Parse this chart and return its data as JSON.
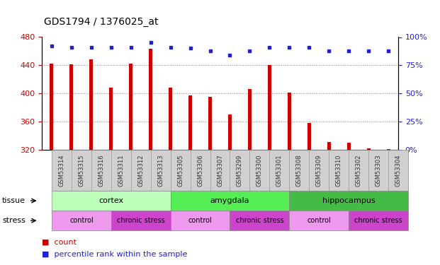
{
  "title": "GDS1794 / 1376025_at",
  "samples": [
    "GSM53314",
    "GSM53315",
    "GSM53316",
    "GSM53311",
    "GSM53312",
    "GSM53313",
    "GSM53305",
    "GSM53306",
    "GSM53307",
    "GSM53299",
    "GSM53300",
    "GSM53301",
    "GSM53308",
    "GSM53309",
    "GSM53310",
    "GSM53302",
    "GSM53303",
    "GSM53304"
  ],
  "counts": [
    442,
    441,
    448,
    408,
    442,
    463,
    408,
    397,
    395,
    370,
    406,
    440,
    401,
    358,
    331,
    330,
    322,
    321
  ],
  "percentiles": [
    92,
    91,
    91,
    91,
    91,
    95,
    91,
    90,
    88,
    84,
    88,
    91,
    91,
    91,
    88,
    88,
    88,
    88
  ],
  "ymin": 320,
  "ymax": 480,
  "yticks": [
    320,
    360,
    400,
    440,
    480
  ],
  "yright_ticks": [
    0,
    25,
    50,
    75,
    100
  ],
  "bar_color": "#cc0000",
  "dot_color": "#2222cc",
  "tissue_groups": [
    {
      "label": "cortex",
      "start": 0,
      "end": 6,
      "color": "#bbffbb"
    },
    {
      "label": "amygdala",
      "start": 6,
      "end": 12,
      "color": "#55ee55"
    },
    {
      "label": "hippocampus",
      "start": 12,
      "end": 18,
      "color": "#44bb44"
    }
  ],
  "stress_groups": [
    {
      "label": "control",
      "start": 0,
      "end": 3,
      "color": "#ee99ee"
    },
    {
      "label": "chronic stress",
      "start": 3,
      "end": 6,
      "color": "#cc44cc"
    },
    {
      "label": "control",
      "start": 6,
      "end": 9,
      "color": "#ee99ee"
    },
    {
      "label": "chronic stress",
      "start": 9,
      "end": 12,
      "color": "#cc44cc"
    },
    {
      "label": "control",
      "start": 12,
      "end": 15,
      "color": "#ee99ee"
    },
    {
      "label": "chronic stress",
      "start": 15,
      "end": 18,
      "color": "#cc44cc"
    }
  ],
  "bg_color": "#ffffff",
  "tick_label_color_left": "#cc0000",
  "tick_label_color_right": "#2222cc",
  "figwidth": 6.21,
  "figheight": 3.75,
  "dpi": 100
}
